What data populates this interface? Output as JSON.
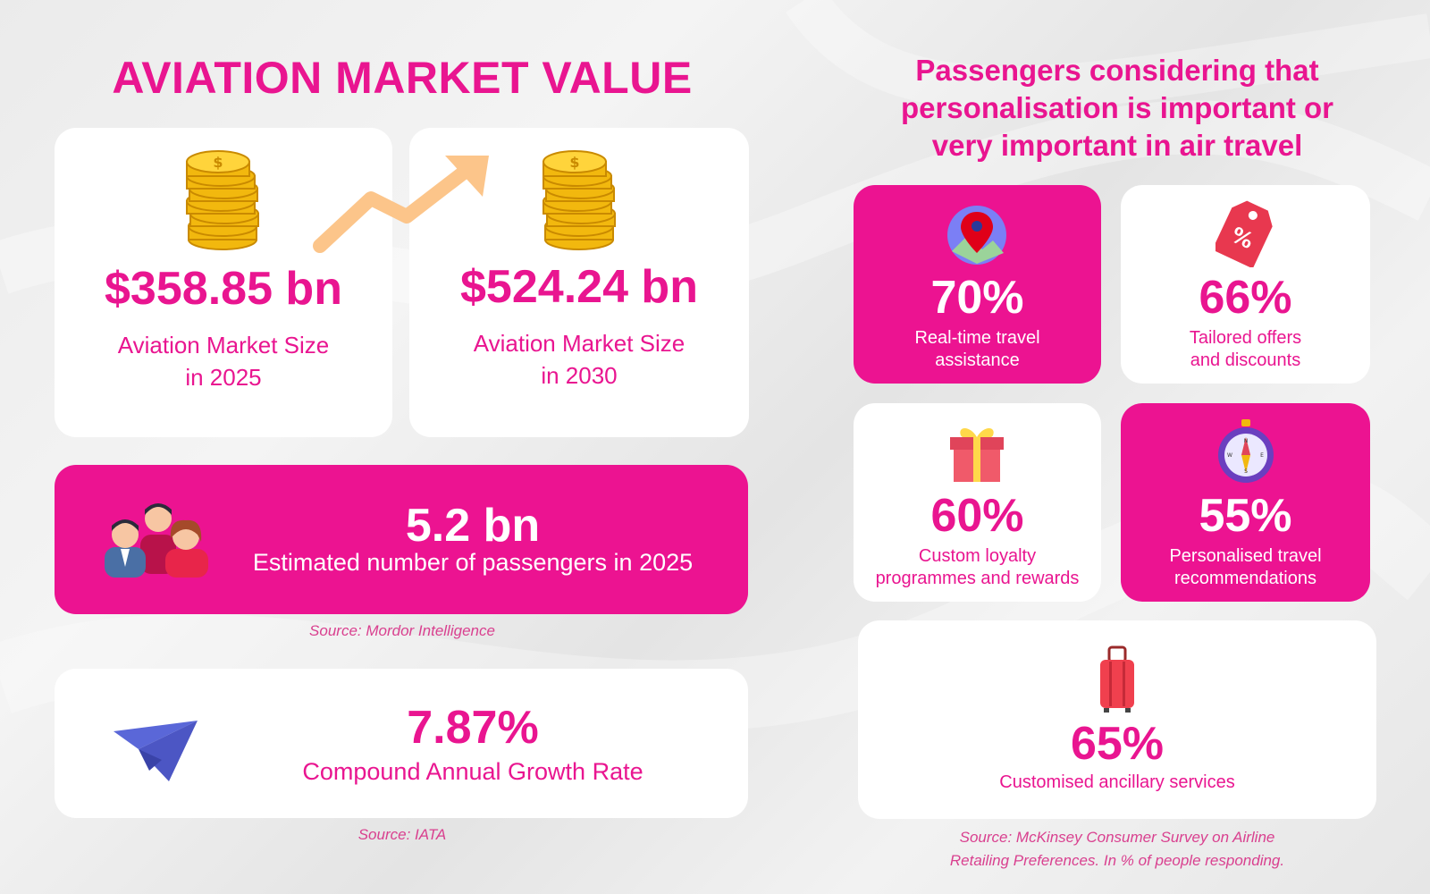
{
  "market": {
    "title": "AVIATION MARKET VALUE",
    "size_2025": {
      "value": "$358.85 bn",
      "label_line1": "Aviation Market Size",
      "label_line2": "in 2025",
      "icon": "coin-stack-icon"
    },
    "size_2030": {
      "value": "$524.24 bn",
      "label_line1": "Aviation Market Size",
      "label_line2": "in 2030",
      "icon": "coin-stack-icon"
    },
    "growth_arrow_icon": "trend-up-arrow-icon",
    "passengers": {
      "value": "5.2 bn",
      "label": "Estimated number of passengers in 2025",
      "icon": "people-group-icon"
    },
    "source_1": "Source: Mordor Intelligence",
    "cagr": {
      "value": "7.87%",
      "label": "Compound Annual Growth Rate",
      "icon": "paper-plane-icon"
    },
    "source_2": "Source: IATA"
  },
  "personalisation": {
    "title_line1": "Passengers considering that",
    "title_line2": "personalisation is important or",
    "title_line3": "very important in air travel",
    "items": [
      {
        "percent": "70%",
        "line1": "Real-time travel",
        "line2": "assistance",
        "icon": "map-pin-icon",
        "style": "pink"
      },
      {
        "percent": "66%",
        "line1": "Tailored offers",
        "line2": "and discounts",
        "icon": "discount-tag-icon",
        "style": "white"
      },
      {
        "percent": "60%",
        "line1": "Custom loyalty",
        "line2": "programmes and rewards",
        "icon": "gift-box-icon",
        "style": "white"
      },
      {
        "percent": "55%",
        "line1": "Personalised travel",
        "line2": "recommendations",
        "icon": "compass-icon",
        "style": "pink"
      },
      {
        "percent": "65%",
        "line1": "Customised ancillary services",
        "line2": "",
        "icon": "suitcase-icon",
        "style": "white"
      }
    ],
    "source_line1": "Source: McKinsey Consumer Survey on Airline",
    "source_line2": "Retailing Preferences. In % of people responding."
  },
  "colors": {
    "brand_pink": "#ec1391",
    "text_pink": "#e91590",
    "card_white": "#ffffff",
    "background": "#ececec"
  }
}
